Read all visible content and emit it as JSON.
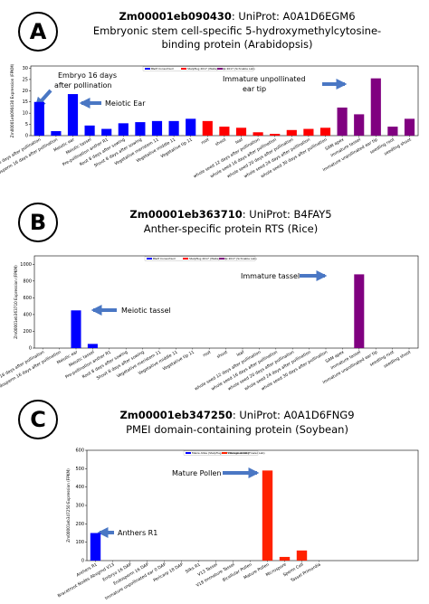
{
  "chart_data": [
    {
      "type": "bar",
      "label": "A",
      "title_id": "Zm00001eb090430",
      "title_rest": ": UniProt: A0A1D6EGM6",
      "subtitle": [
        "Embryonic stem cell-specific 5-hydroxymethylcytosine-",
        "binding protein (Arabidopsis)"
      ],
      "ylabel": "Zm00001eb090430 Expression (FPKM)",
      "ylim": [
        0,
        31
      ],
      "yticks": [
        0,
        5,
        10,
        15,
        20,
        25,
        30
      ],
      "categories": [
        "Embryo 16 days after pollination",
        "Endosperm 16 days after pollination",
        "Meiotic ear",
        "Meiotic tassel",
        "Pre-pollination anther R1",
        "Root 8 days after sowing",
        "Shoot 8 days after sowing",
        "Vegetative meristem 11",
        "Vegetative middle 11",
        "Vegetative tip 11",
        "root",
        "shoot",
        "leaf",
        "whole seed 12 days after pollination",
        "whole seed 16 days after pollination",
        "whole seed 20 days after pollination",
        "whole seed 24 days after pollination",
        "whole seed 30 days after pollination",
        "SAM apex",
        "immature tassel",
        "immature unpollinated ear tip",
        "seedling root",
        "seedling shoot"
      ],
      "series": [
        {
          "name": "B&M Consortium",
          "color": "#0000ff",
          "values": [
            15,
            2,
            18.5,
            4.5,
            3,
            5.5,
            6,
            6.5,
            6.5,
            7.5,
            null,
            null,
            null,
            null,
            null,
            null,
            null,
            null,
            null,
            null,
            null,
            null,
            null
          ]
        },
        {
          "name": "Stelpflug 2017 (Walley Lab)",
          "color": "#ff0000",
          "values": [
            null,
            null,
            null,
            null,
            null,
            null,
            null,
            null,
            null,
            null,
            6.5,
            4,
            3.5,
            1.5,
            0.8,
            2.5,
            3,
            3.5,
            null,
            null,
            null,
            null,
            null
          ]
        },
        {
          "name": "Li 2017 (Schnable Lab)",
          "color": "#800080",
          "values": [
            null,
            null,
            null,
            null,
            null,
            null,
            null,
            null,
            null,
            null,
            null,
            null,
            null,
            null,
            null,
            null,
            null,
            null,
            12.5,
            9.5,
            25.5,
            4,
            7.5
          ]
        }
      ],
      "annotations": [
        [
          "Embryo 16 days",
          "after pollination"
        ],
        [
          "Meiotic Ear"
        ],
        [
          "Immature unpollinated",
          "ear tip"
        ]
      ]
    },
    {
      "type": "bar",
      "label": "B",
      "title_id": "Zm00001eb363710",
      "title_rest": ": UniProt: B4FAY5",
      "subtitle": [
        "Anther-specific protein RTS (Rice)"
      ],
      "ylabel": "Zm00001eb363710 Expression (FPKM)",
      "ylim": [
        0,
        1100
      ],
      "yticks": [
        0,
        200,
        400,
        600,
        800,
        1000
      ],
      "categories": [
        "Embryo 16 days after pollination",
        "Endosperm 16 days after pollination",
        "Meiotic ear",
        "Meiotic tassel",
        "Pre-pollination anther R1",
        "Root 8 days after sowing",
        "Shoot 8 days after sowing",
        "Vegetative meristem 11",
        "Vegetative middle 11",
        "Vegetative tip 11",
        "root",
        "shoot",
        "leaf",
        "whole seed 12 days after pollination",
        "whole seed 16 days after pollination",
        "whole seed 20 days after pollination",
        "whole seed 24 days after pollination",
        "whole seed 30 days after pollination",
        "SAM apex",
        "immature tassel",
        "immature unpollinated ear tip",
        "seedling root",
        "seedling shoot"
      ],
      "series": [
        {
          "name": "B&M Consortium",
          "color": "#0000ff",
          "values": [
            0,
            0,
            450,
            50,
            0,
            0,
            0,
            0,
            0,
            0,
            null,
            null,
            null,
            null,
            null,
            null,
            null,
            null,
            null,
            null,
            null,
            null,
            null
          ]
        },
        {
          "name": "Stelpflug 2017 (Walley Lab)",
          "color": "#ff0000",
          "values": [
            null,
            null,
            null,
            null,
            null,
            null,
            null,
            null,
            null,
            null,
            0,
            0,
            0,
            0,
            0,
            0,
            0,
            0,
            null,
            null,
            null,
            null,
            null
          ]
        },
        {
          "name": "Li 2017 (Schnable Lab)",
          "color": "#800080",
          "values": [
            null,
            null,
            null,
            null,
            null,
            null,
            null,
            null,
            null,
            null,
            null,
            null,
            null,
            null,
            null,
            null,
            null,
            null,
            0,
            880,
            0,
            0,
            0
          ]
        }
      ],
      "annotations": [
        [
          "Immature tassel"
        ],
        [
          "Meiotic tassel"
        ]
      ]
    },
    {
      "type": "bar",
      "label": "C",
      "title_id": "Zm00001eb347250",
      "title_rest": ": UniProt: A0A1D6FNG9",
      "subtitle": [
        "PMEI domain-containing protein (Soybean)"
      ],
      "ylabel": "Zm00001eb347250 Expression (FPKM)",
      "ylim": [
        0,
        600
      ],
      "yticks": [
        0,
        100,
        200,
        300,
        400,
        500,
        600
      ],
      "categories": [
        "Anthers R1",
        "Bracetroot Nodes Abvgrnd V13",
        "Embryo 16 DAP",
        "Endosperm 16 DAP",
        "Immature unpollinated ear 0 DAP",
        "Pericarp 18 DAP",
        "Silks R1",
        "V13 Tassel",
        "V18 Immature Tassel",
        "Bicellular Pollen",
        "Mature Pollen",
        "Microspore",
        "Sperm Cell",
        "Tassel Primordia"
      ],
      "series": [
        {
          "name": "Maize Atlas (Stelpflug 2015 Douglass Lab)",
          "color": "#0000ff",
          "values": [
            150,
            0,
            0,
            0,
            0,
            0,
            0,
            0,
            0,
            null,
            null,
            null,
            null,
            null
          ]
        },
        {
          "name": "Warman 2020 (Fowler Lab)",
          "color": "#ff2200",
          "values": [
            null,
            null,
            null,
            null,
            null,
            null,
            null,
            null,
            null,
            0,
            490,
            20,
            55,
            0
          ]
        }
      ],
      "annotations": [
        [
          "Mature Pollen"
        ],
        [
          "Anthers R1"
        ]
      ]
    }
  ]
}
